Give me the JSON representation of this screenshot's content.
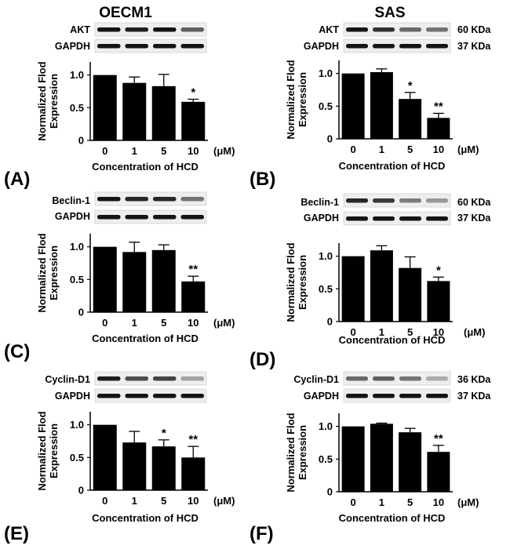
{
  "columns": [
    "OECM1",
    "SAS"
  ],
  "units": "(μM)",
  "panel_letters": [
    "(A)",
    "(B)",
    "(C)",
    "(D)",
    "(E)",
    "(F)"
  ],
  "loading_control": "GAPDH",
  "chart_data": [
    {
      "id": "A",
      "cell_line": "OECM1",
      "protein": "AKT",
      "type": "bar",
      "categories": [
        "0",
        "1",
        "5",
        "10"
      ],
      "values": [
        1.0,
        0.88,
        0.83,
        0.59
      ],
      "errors": [
        0,
        0.09,
        0.18,
        0.04
      ],
      "significance": [
        "",
        "",
        "",
        "*"
      ],
      "ylim": [
        0,
        1.2
      ],
      "yticks": [
        "0",
        "0.5",
        "1.0"
      ],
      "ylabel": "Normalized Flod Expression",
      "xlabel": "Concentration of HCD",
      "kda": [
        "",
        ""
      ],
      "band_intensity": [
        1.0,
        0.95,
        1.0,
        0.6
      ]
    },
    {
      "id": "B",
      "cell_line": "SAS",
      "protein": "AKT",
      "type": "bar",
      "categories": [
        "0",
        "1",
        "5",
        "10"
      ],
      "values": [
        1.0,
        1.02,
        0.61,
        0.32
      ],
      "errors": [
        0,
        0.05,
        0.1,
        0.07
      ],
      "significance": [
        "",
        "",
        "*",
        "**"
      ],
      "ylim": [
        0,
        1.2
      ],
      "yticks": [
        "0",
        "0.5",
        "1.0"
      ],
      "ylabel": "Normalized Flod Expression",
      "xlabel": "Concentration of HCD",
      "kda": [
        "60 KDa",
        "37 KDa"
      ],
      "band_intensity": [
        1.0,
        0.85,
        0.55,
        0.5
      ]
    },
    {
      "id": "C",
      "cell_line": "OECM1",
      "protein": "Beclin-1",
      "type": "bar",
      "categories": [
        "0",
        "1",
        "5",
        "10"
      ],
      "values": [
        1.0,
        0.92,
        0.95,
        0.47
      ],
      "errors": [
        0,
        0.15,
        0.08,
        0.08
      ],
      "significance": [
        "",
        "",
        "",
        "**"
      ],
      "ylim": [
        0,
        1.2
      ],
      "yticks": [
        "0",
        "0.5",
        "1.0"
      ],
      "ylabel": "Normalized Flod Expression",
      "xlabel": "Concentration of HCD",
      "kda": [
        "",
        ""
      ],
      "band_intensity": [
        1.0,
        0.9,
        0.9,
        0.5
      ]
    },
    {
      "id": "D",
      "cell_line": "SAS",
      "protein": "Beclin-1",
      "type": "bar",
      "categories": [
        "0",
        "1",
        "5",
        "10"
      ],
      "values": [
        1.0,
        1.09,
        0.82,
        0.62
      ],
      "errors": [
        0,
        0.07,
        0.17,
        0.06
      ],
      "significance": [
        "",
        "",
        "",
        "*"
      ],
      "ylim": [
        0,
        1.2
      ],
      "yticks": [
        "0",
        "0.5",
        "1.0"
      ],
      "ylabel": "Normalized Flod Expression",
      "xlabel": "Concentration of HCD",
      "kda": [
        "60 KDa",
        "37 KDa"
      ],
      "band_intensity": [
        0.9,
        0.8,
        0.45,
        0.3
      ]
    },
    {
      "id": "E",
      "cell_line": "OECM1",
      "protein": "Cyclin-D1",
      "type": "bar",
      "categories": [
        "0",
        "1",
        "5",
        "10"
      ],
      "values": [
        1.0,
        0.73,
        0.67,
        0.5
      ],
      "errors": [
        0,
        0.17,
        0.1,
        0.17
      ],
      "significance": [
        "",
        "",
        "*",
        "**"
      ],
      "ylim": [
        0,
        1.2
      ],
      "yticks": [
        "0",
        "0.5",
        "1.0"
      ],
      "ylabel": "Normalized Flod Expression",
      "xlabel": "Concentration of HCD",
      "kda": [
        "",
        ""
      ],
      "band_intensity": [
        0.95,
        0.7,
        0.75,
        0.25
      ]
    },
    {
      "id": "F",
      "cell_line": "SAS",
      "protein": "Cyclin-D1",
      "type": "bar",
      "categories": [
        "0",
        "1",
        "5",
        "10"
      ],
      "values": [
        1.0,
        1.04,
        0.91,
        0.61
      ],
      "errors": [
        0,
        0.01,
        0.06,
        0.1
      ],
      "significance": [
        "",
        "",
        "",
        "**"
      ],
      "ylim": [
        0,
        1.2
      ],
      "yticks": [
        "0",
        "0.5",
        "1.0"
      ],
      "ylabel": "Normalized Flod Expression",
      "xlabel": "Concentration of HCD",
      "kda": [
        "36 KDa",
        "37 KDa"
      ],
      "band_intensity": [
        0.55,
        0.6,
        0.5,
        0.2
      ]
    }
  ]
}
